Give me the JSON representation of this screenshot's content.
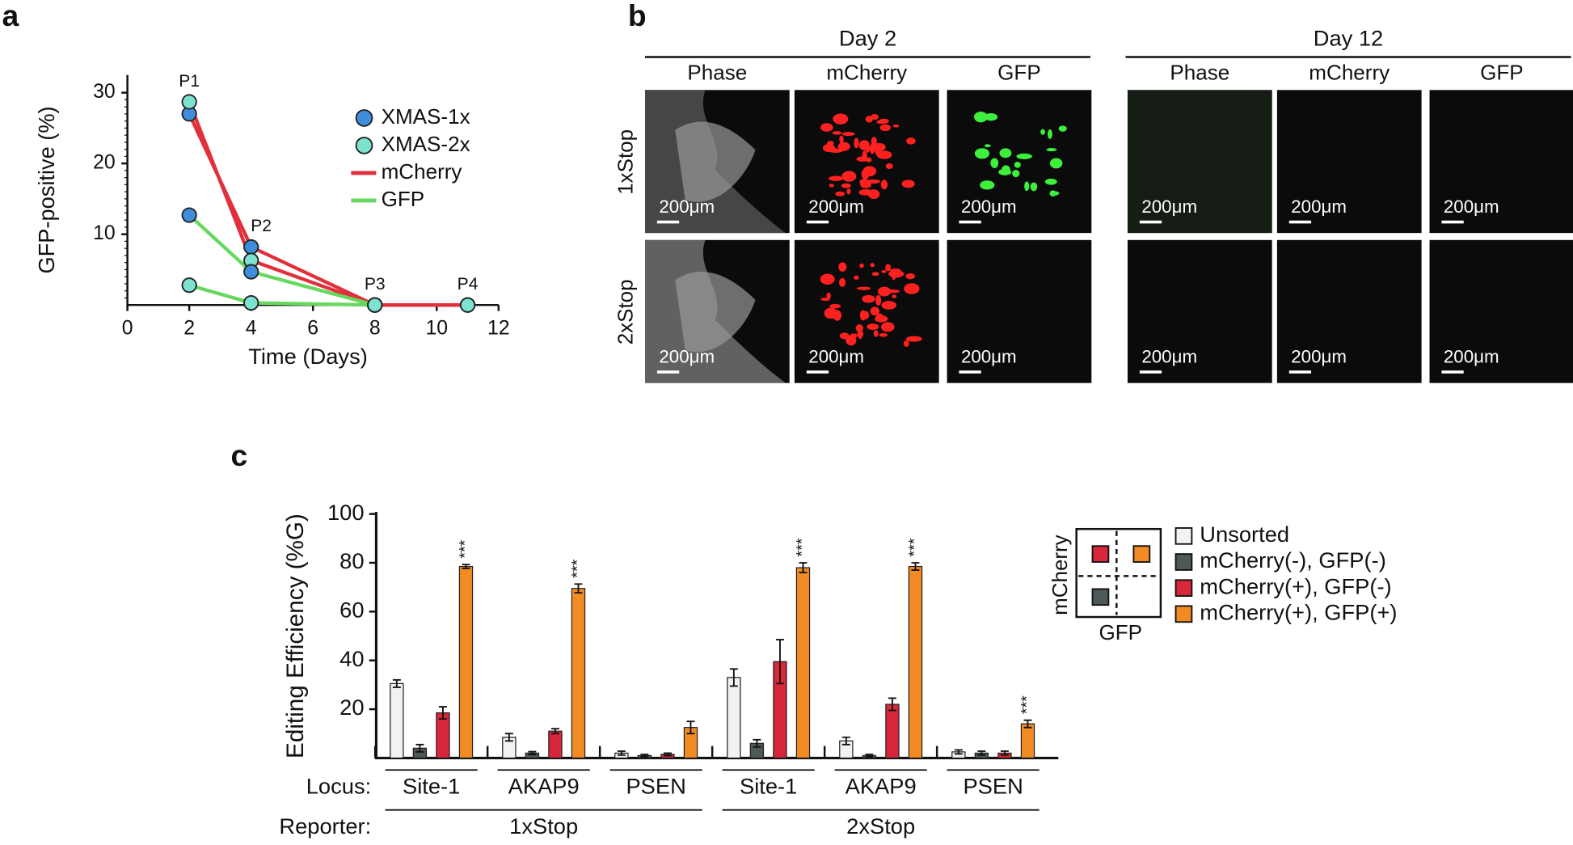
{
  "panel_labels": [
    "a",
    "b",
    "c"
  ],
  "micrographs": {
    "days": [
      "Day 2",
      "Day 12"
    ],
    "channels": [
      "Phase",
      "mCherry",
      "GFP"
    ],
    "rows": [
      "1xStop",
      "2xStop"
    ],
    "scale_bar": "200μm"
  },
  "chart_data": [
    {
      "type": "line",
      "ylabel": "GFP-positive (%)",
      "xlabel": "Time (Days)",
      "xlim": [
        0,
        12
      ],
      "ylim": [
        0,
        32.5
      ],
      "xticks": [
        0,
        2,
        4,
        6,
        8,
        10,
        12
      ],
      "yticks": [
        10,
        20,
        30
      ],
      "annotations": [
        {
          "text": "P1",
          "x": 2
        },
        {
          "text": "P2",
          "x": 4
        },
        {
          "text": "P3",
          "x": 8
        },
        {
          "text": "P4",
          "x": 11
        }
      ],
      "legend": [
        {
          "label": "XMAS-1x",
          "marker": "#3e8edb"
        },
        {
          "label": "XMAS-2x",
          "marker": "#7de3d0"
        },
        {
          "label": "mCherry",
          "color": "#e0303c"
        },
        {
          "label": "GFP",
          "color": "#66d85e"
        }
      ],
      "series": [
        {
          "color": "#e0303c",
          "marker": "#3e8edb",
          "x": [
            2,
            4,
            8,
            11
          ],
          "values": [
            27,
            8.2,
            0,
            0
          ]
        },
        {
          "color": "#e0303c",
          "marker": "#7de3d0",
          "x": [
            2,
            4,
            8,
            11
          ],
          "values": [
            28.7,
            6.3,
            0,
            0
          ]
        },
        {
          "color": "#66d85e",
          "marker": "#3e8edb",
          "x": [
            2,
            4,
            8
          ],
          "values": [
            12.7,
            4.7,
            0
          ]
        },
        {
          "color": "#66d85e",
          "marker": "#7de3d0",
          "x": [
            2,
            4,
            8
          ],
          "values": [
            2.8,
            0.3,
            0
          ]
        }
      ]
    },
    {
      "type": "bar",
      "ylabel": "Editing Efficiency (%G)",
      "ylim": [
        0,
        100
      ],
      "yticks": [
        20,
        40,
        60,
        80,
        100
      ],
      "category_title": "Locus:",
      "group_title": "Reporter:",
      "categories": [
        "Site-1",
        "AKAP9",
        "PSEN",
        "Site-1",
        "AKAP9",
        "PSEN"
      ],
      "groups": [
        {
          "label": "1xStop",
          "categories": [
            0,
            1,
            2
          ]
        },
        {
          "label": "2xStop",
          "categories": [
            3,
            4,
            5
          ]
        }
      ],
      "legend_axes": {
        "y": "mCherry",
        "x": "GFP"
      },
      "series": [
        {
          "name": "Unsorted",
          "color": "#f2f2f2",
          "values": [
            30.5,
            8.5,
            2,
            33,
            7,
            2.5
          ],
          "errors": [
            1.5,
            1.5,
            0.8,
            3.5,
            1.5,
            0.8
          ]
        },
        {
          "name": "mCherry(-), GFP(-)",
          "color": "#4e5858",
          "values": [
            4,
            2,
            1,
            6,
            1,
            2
          ],
          "errors": [
            1.5,
            0.6,
            0.5,
            1.5,
            0.5,
            0.8
          ]
        },
        {
          "name": "mCherry(+), GFP(-)",
          "color": "#d8263a",
          "values": [
            18.5,
            11,
            1.5,
            39.5,
            22,
            2
          ],
          "errors": [
            2.5,
            1,
            0.5,
            9,
            2.5,
            0.8
          ]
        },
        {
          "name": "mCherry(+), GFP(+)",
          "color": "#f28b24",
          "values": [
            78.5,
            69.5,
            12.5,
            78,
            78.5,
            14
          ],
          "errors": [
            0.8,
            1.8,
            2.5,
            2,
            1.5,
            1.5
          ],
          "annotations": [
            "***",
            "***",
            null,
            "***",
            "***",
            "***"
          ]
        }
      ]
    }
  ]
}
